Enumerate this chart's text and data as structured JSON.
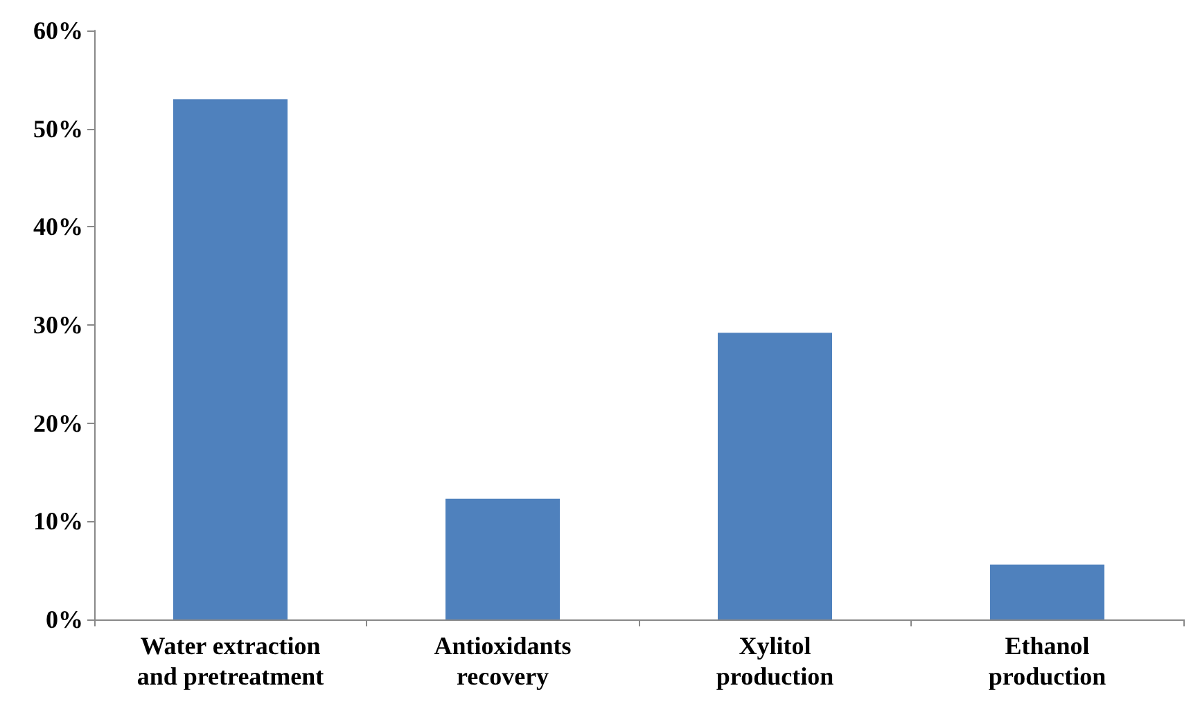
{
  "chart_data": {
    "type": "bar",
    "categories": [
      "Water extraction\nand pretreatment",
      "Antioxidants\nrecovery",
      "Xylitol\nproduction",
      "Ethanol\nproduction"
    ],
    "values": [
      53,
      12.3,
      29.2,
      5.6
    ],
    "color": "#4f81bd",
    "ylim": [
      0,
      60
    ],
    "yticks": [
      {
        "value": 0,
        "label": "0%"
      },
      {
        "value": 10,
        "label": "10%"
      },
      {
        "value": 20,
        "label": "20%"
      },
      {
        "value": 30,
        "label": "30%"
      },
      {
        "value": 40,
        "label": "40%"
      },
      {
        "value": 50,
        "label": "50%"
      },
      {
        "value": 60,
        "label": "60%"
      }
    ],
    "grid": false
  }
}
